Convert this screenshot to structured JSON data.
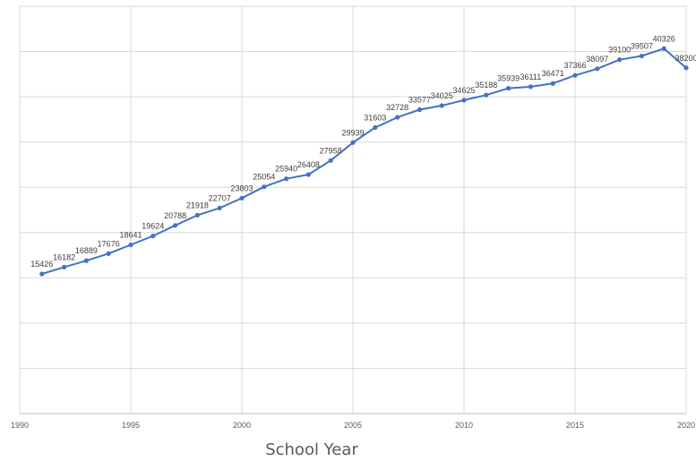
{
  "chart_data": {
    "type": "line",
    "xlabel": "School Year",
    "ylabel": "",
    "xlim": [
      1990,
      2020
    ],
    "ylim": [
      0,
      45000
    ],
    "x_ticks": [
      "1990",
      "1995",
      "2000",
      "2005",
      "2010",
      "2015",
      "2020"
    ],
    "y_tick_values": [
      0,
      5000,
      10000,
      15000,
      20000,
      25000,
      30000,
      35000,
      40000,
      45000
    ],
    "y_tick_labels_visible": false,
    "grid": true,
    "legend": "none",
    "color": "#4472c4",
    "x": [
      1991,
      1992,
      1993,
      1994,
      1995,
      1996,
      1997,
      1998,
      1999,
      2000,
      2001,
      2002,
      2003,
      2004,
      2005,
      2006,
      2007,
      2008,
      2009,
      2010,
      2011,
      2012,
      2013,
      2014,
      2015,
      2016,
      2017,
      2018,
      2019,
      2020
    ],
    "series": [
      {
        "values": [
          15426,
          16182,
          16889,
          17676,
          18641,
          19624,
          20788,
          21918,
          22707,
          23803,
          25054,
          25940,
          26408,
          27958,
          29939,
          31603,
          32728,
          33577,
          34025,
          34625,
          35188,
          35939,
          36111,
          36471,
          37366,
          38097,
          39100,
          39507,
          40326,
          38200
        ]
      }
    ],
    "data_labels": [
      "15426",
      "16182",
      "16889",
      "17676",
      "18641",
      "19624",
      "20788",
      "21918",
      "22707",
      "23803",
      "25054",
      "25940",
      "26408",
      "27958",
      "29939",
      "31603",
      "32728",
      "33577",
      "34025",
      "34625",
      "35188",
      "35939",
      "36111",
      "36471",
      "37366",
      "38097",
      "39100",
      "39507",
      "40326",
      "38200"
    ]
  }
}
